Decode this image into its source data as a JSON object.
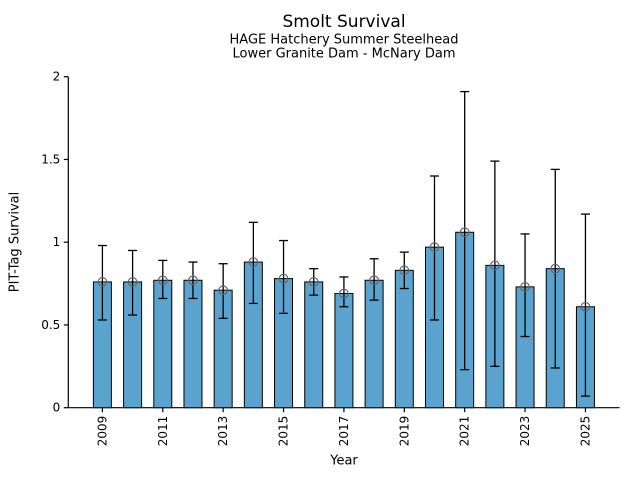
{
  "figure": {
    "title": "Smolt Survival",
    "subtitle_line1": "HAGE Hatchery Summer Steelhead",
    "subtitle_line2": "Lower Granite Dam - McNary Dam"
  },
  "chart_data": {
    "type": "bar",
    "title": "Smolt Survival",
    "subtitle": [
      "HAGE Hatchery Summer Steelhead",
      "Lower Granite Dam - McNary Dam"
    ],
    "xlabel": "Year",
    "ylabel": "PIT-Tag Survival",
    "ylim": [
      0,
      2
    ],
    "grid": false,
    "legend": "none",
    "y_ticks": [
      0,
      0.5,
      1,
      1.5,
      2
    ],
    "y_tick_labels": [
      "0",
      "0.5",
      "1",
      "1.5",
      "2"
    ],
    "x_tick_labels": [
      "2009",
      "2011",
      "2013",
      "2015",
      "2017",
      "2019",
      "2021",
      "2023",
      "2025"
    ],
    "categories": [
      2009,
      2010,
      2011,
      2012,
      2013,
      2014,
      2015,
      2016,
      2017,
      2018,
      2019,
      2020,
      2021,
      2022,
      2023,
      2024,
      2025
    ],
    "values": [
      0.76,
      0.76,
      0.77,
      0.77,
      0.71,
      0.88,
      0.78,
      0.76,
      0.69,
      0.77,
      0.83,
      0.97,
      1.06,
      0.86,
      0.73,
      0.84,
      0.61
    ],
    "error_low": [
      0.53,
      0.56,
      0.66,
      0.66,
      0.54,
      0.63,
      0.57,
      0.68,
      0.61,
      0.65,
      0.72,
      0.53,
      0.23,
      0.25,
      0.43,
      0.24,
      0.07
    ],
    "error_high": [
      0.98,
      0.95,
      0.89,
      0.88,
      0.87,
      1.12,
      1.01,
      0.84,
      0.79,
      0.9,
      0.94,
      1.4,
      1.91,
      1.49,
      1.05,
      1.44,
      1.17
    ],
    "marker": "open-circle",
    "colors": {
      "bar_fill": "#5ba3cf",
      "bar_edge": "#000000",
      "error_bar": "#000000",
      "marker_edge": "#666666",
      "axis": "#000000",
      "text": "#000000",
      "background": "#ffffff"
    }
  }
}
